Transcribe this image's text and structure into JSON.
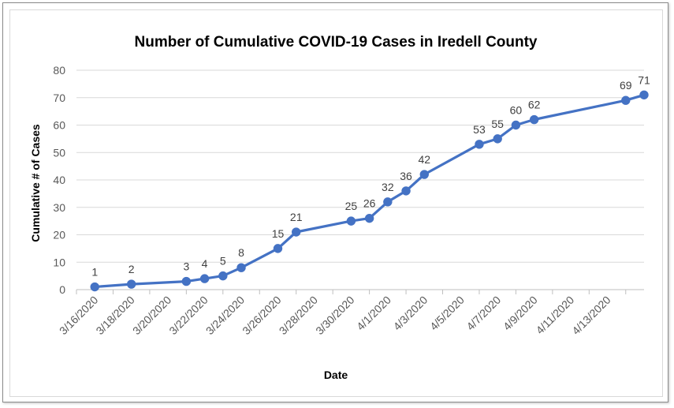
{
  "chart_data": {
    "type": "line",
    "title": "Number of Cumulative COVID-19 Cases in Iredell County",
    "xlabel": "Date",
    "ylabel": "Cumulative # of Cases",
    "ylim": [
      0,
      80
    ],
    "y_ticks": [
      "0",
      "10",
      "20",
      "30",
      "40",
      "50",
      "60",
      "70",
      "80"
    ],
    "x_range": [
      "2020-03-15",
      "2020-04-15"
    ],
    "x_ticks": [
      "3/16/2020",
      "3/18/2020",
      "3/20/2020",
      "3/22/2020",
      "3/24/2020",
      "3/26/2020",
      "3/28/2020",
      "3/30/2020",
      "4/1/2020",
      "4/3/2020",
      "4/5/2020",
      "4/7/2020",
      "4/9/2020",
      "4/11/2020",
      "4/13/2020"
    ],
    "x": [
      "2020-03-16",
      "2020-03-18",
      "2020-03-21",
      "2020-03-22",
      "2020-03-23",
      "2020-03-24",
      "2020-03-26",
      "2020-03-27",
      "2020-03-30",
      "2020-03-31",
      "2020-04-01",
      "2020-04-02",
      "2020-04-03",
      "2020-04-06",
      "2020-04-07",
      "2020-04-08",
      "2020-04-09",
      "2020-04-14",
      "2020-04-15"
    ],
    "series": [
      {
        "values": [
          1,
          2,
          3,
          4,
          5,
          8,
          15,
          21,
          25,
          26,
          32,
          36,
          42,
          53,
          55,
          60,
          62,
          69,
          71
        ]
      }
    ],
    "data_labels": true,
    "grid": true,
    "color": "#4472C4"
  }
}
